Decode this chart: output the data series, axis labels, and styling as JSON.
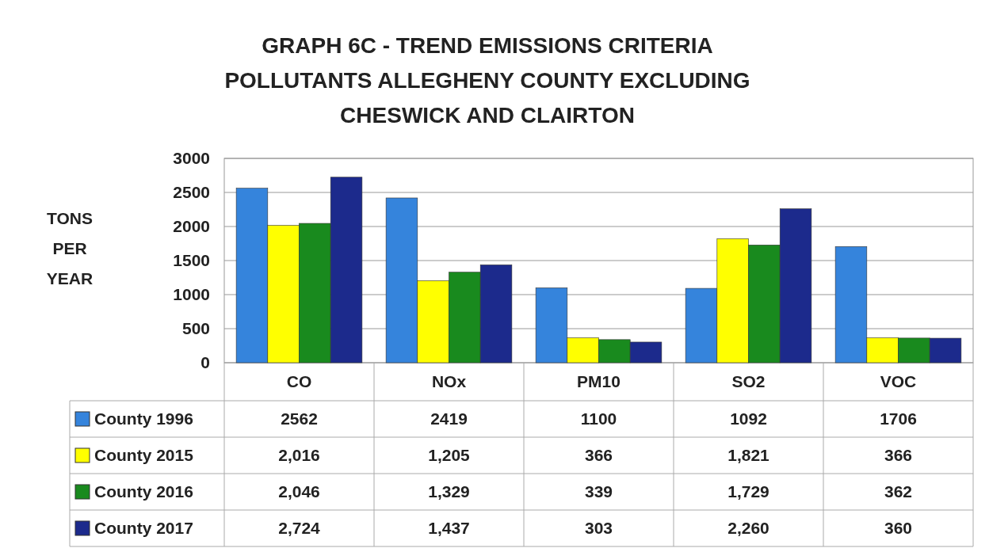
{
  "chart_data": {
    "type": "bar",
    "title": "GRAPH 6C  - TREND EMISSIONS CRITERIA POLLUTANTS ALLEGHENY COUNTY EXCLUDING CHESWICK AND CLAIRTON",
    "ylabel": "TONS PER YEAR",
    "categories": [
      "CO",
      "NOx",
      "PM10",
      "SO2",
      "VOC"
    ],
    "series": [
      {
        "name": "County 1996",
        "color": "#3584dc",
        "values": [
          2562,
          2419,
          1100,
          1092,
          1706
        ],
        "value_labels": [
          "2562",
          "2419",
          "1100",
          "1092",
          "1706"
        ]
      },
      {
        "name": "County 2015",
        "color": "#ffff00",
        "values": [
          2016,
          1205,
          366,
          1821,
          366
        ],
        "value_labels": [
          "2,016",
          "1,205",
          "366",
          "1,821",
          "366"
        ]
      },
      {
        "name": "County 2016",
        "color": "#198a1e",
        "values": [
          2046,
          1329,
          339,
          1729,
          362
        ],
        "value_labels": [
          "2,046",
          "1,329",
          "339",
          "1,729",
          "362"
        ]
      },
      {
        "name": "County 2017",
        "color": "#1c2a8c",
        "values": [
          2724,
          1437,
          303,
          2260,
          360
        ],
        "value_labels": [
          "2,724",
          "1,437",
          "303",
          "2,260",
          "360"
        ]
      }
    ],
    "ylim": [
      0,
      3000
    ],
    "yticks": [
      0,
      500,
      1000,
      1500,
      2000,
      2500,
      3000
    ],
    "grid": "y",
    "legend": "bottom"
  }
}
